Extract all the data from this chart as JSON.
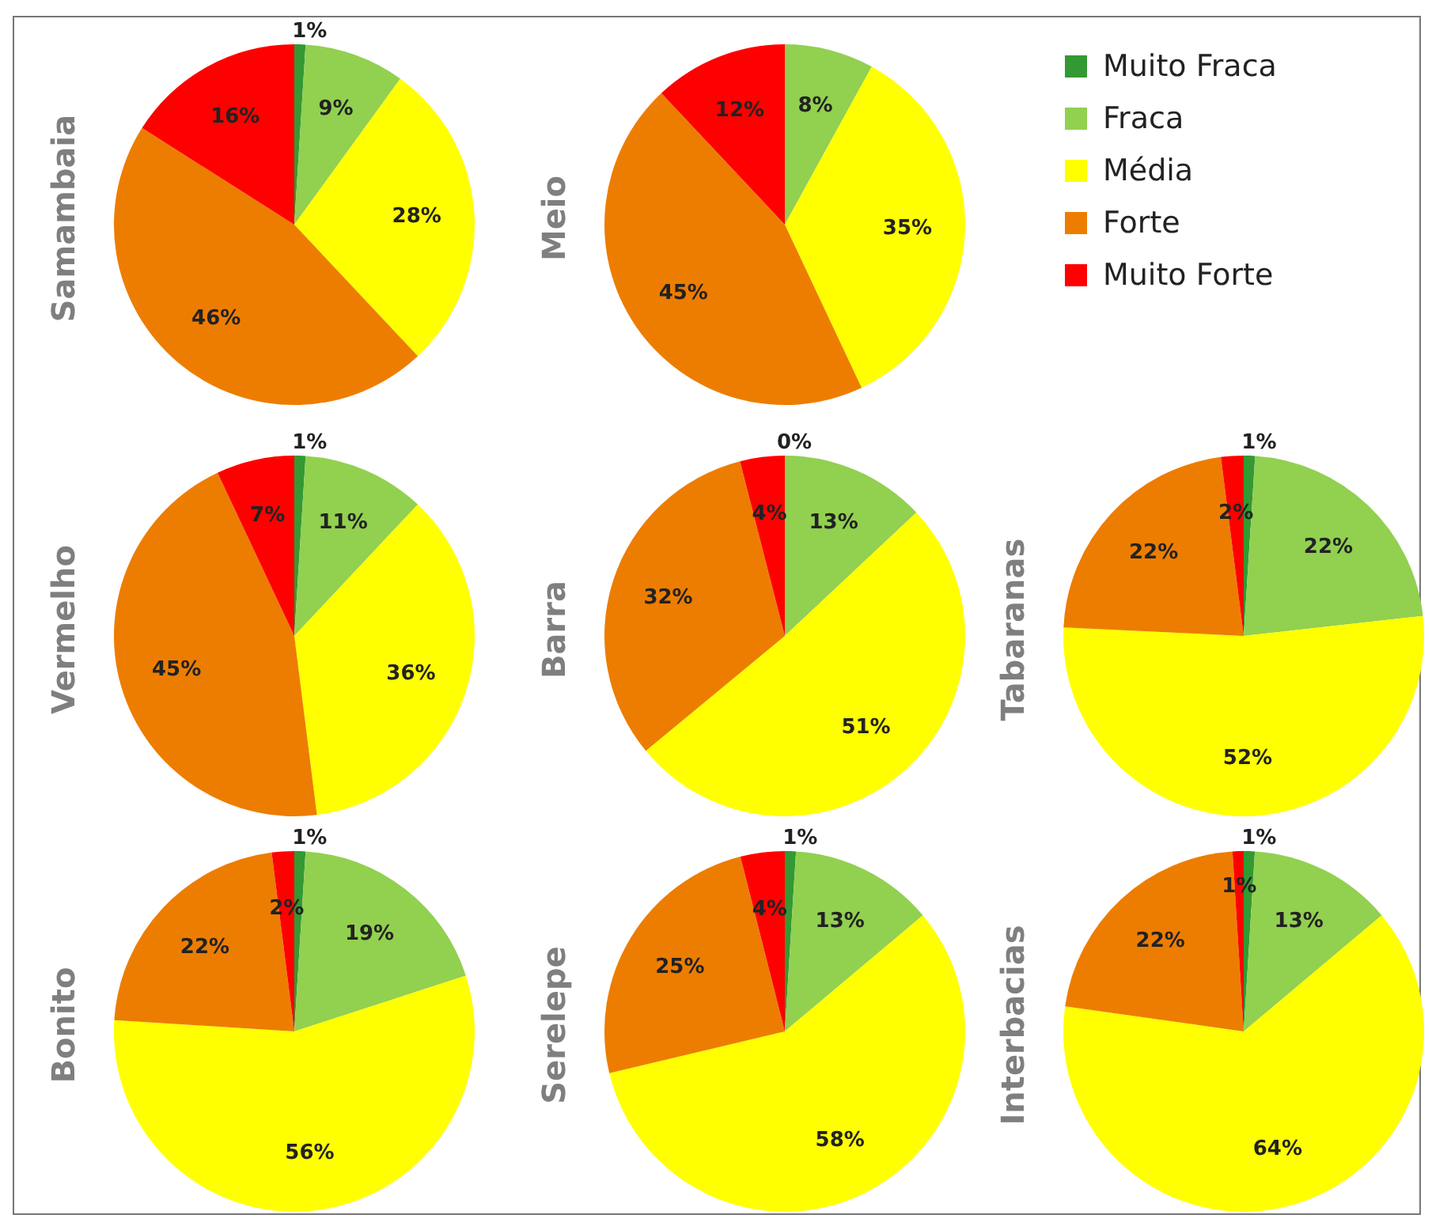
{
  "chart_data": [
    {
      "type": "pie",
      "ylabel": "Samambaia",
      "categories": [
        "Muito Fraca",
        "Fraca",
        "Média",
        "Forte",
        "Muito Forte"
      ],
      "values": [
        1,
        9,
        28,
        46,
        16
      ],
      "value_labels": [
        "1%",
        "9%",
        "28%",
        "46%",
        "16%"
      ],
      "colors": [
        "#339933",
        "#92d050",
        "#ffff00",
        "#ed7d00",
        "#ff0000"
      ],
      "legend": "top right"
    },
    {
      "type": "pie",
      "ylabel": "Meio",
      "categories": [
        null,
        null,
        null,
        null,
        null
      ],
      "values": [
        0,
        8,
        35,
        45,
        12
      ],
      "value_labels": [
        null,
        "8%",
        "35%",
        "45%",
        "12%"
      ],
      "colors": [
        "#339933",
        "#92d050",
        "#ffff00",
        "#ed7d00",
        "#ff0000"
      ]
    },
    {
      "type": "pie",
      "ylabel": "Vermelho",
      "categories": [
        null,
        null,
        null,
        null,
        null
      ],
      "values": [
        1,
        11,
        36,
        45,
        7
      ],
      "value_labels": [
        "1%",
        "11%",
        "36%",
        "45%",
        "7%"
      ],
      "colors": [
        "#339933",
        "#92d050",
        "#ffff00",
        "#ed7d00",
        "#ff0000"
      ]
    },
    {
      "type": "pie",
      "ylabel": "Barra",
      "categories": [
        null,
        null,
        null,
        null,
        null
      ],
      "values": [
        0,
        13,
        51,
        32,
        4
      ],
      "value_labels": [
        "0%",
        "13%",
        "51%",
        "32%",
        "4%"
      ],
      "colors": [
        "#339933",
        "#92d050",
        "#ffff00",
        "#ed7d00",
        "#ff0000"
      ]
    },
    {
      "type": "pie",
      "ylabel": "Tabaranas",
      "categories": [
        null,
        null,
        null,
        null,
        null
      ],
      "values": [
        1,
        22,
        52,
        22,
        2
      ],
      "value_labels": [
        "1%",
        "22%",
        "52%",
        "22%",
        "2%"
      ],
      "colors": [
        "#339933",
        "#92d050",
        "#ffff00",
        "#ed7d00",
        "#ff0000"
      ]
    },
    {
      "type": "pie",
      "ylabel": "Bonito",
      "categories": [
        null,
        null,
        null,
        null,
        null
      ],
      "values": [
        1,
        19,
        56,
        22,
        2
      ],
      "value_labels": [
        "1%",
        "19%",
        "56%",
        "22%",
        "2%"
      ],
      "colors": [
        "#339933",
        "#92d050",
        "#ffff00",
        "#ed7d00",
        "#ff0000"
      ]
    },
    {
      "type": "pie",
      "ylabel": "Serelepe",
      "categories": [
        null,
        null,
        null,
        null,
        null
      ],
      "values": [
        1,
        13,
        58,
        25,
        4
      ],
      "value_labels": [
        "1%",
        "13%",
        "58%",
        "25%",
        "4%"
      ],
      "colors": [
        "#339933",
        "#92d050",
        "#ffff00",
        "#ed7d00",
        "#ff0000"
      ]
    },
    {
      "type": "pie",
      "ylabel": "Interbacias",
      "categories": [
        null,
        null,
        null,
        null,
        null
      ],
      "values": [
        1,
        13,
        64,
        22,
        1
      ],
      "value_labels": [
        "1%",
        "13%",
        "64%",
        "22%",
        "1%"
      ],
      "colors": [
        "#339933",
        "#92d050",
        "#ffff00",
        "#ed7d00",
        "#ff0000"
      ]
    }
  ]
}
